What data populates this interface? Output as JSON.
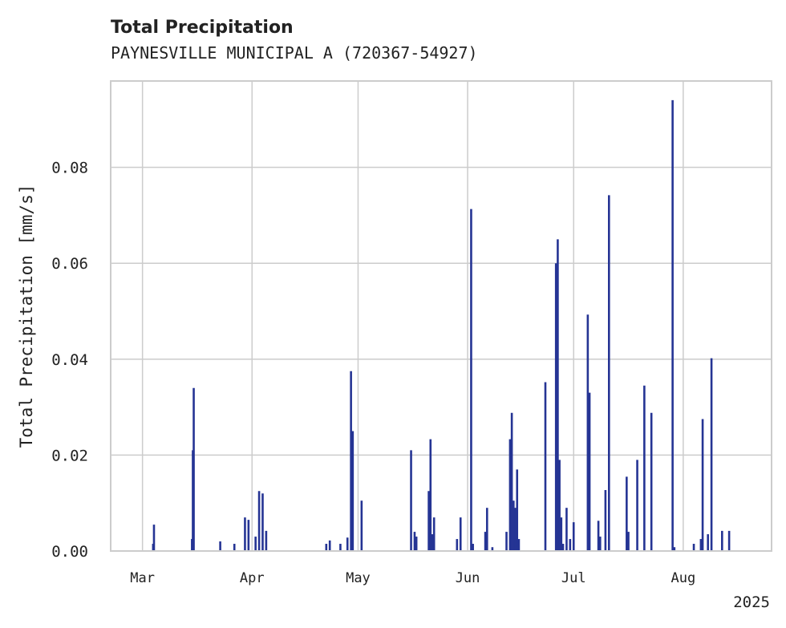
{
  "chart_data": {
    "type": "bar",
    "title": "Total Precipitation",
    "subtitle": "PAYNESVILLE MUNICIPAL A (720367-54927)",
    "ylabel": "Total Precipitation [mm/s]",
    "xlabel": "",
    "year_label": "2025",
    "ylim": [
      0,
      0.098
    ],
    "yticks": [
      "0.00",
      "0.02",
      "0.04",
      "0.06",
      "0.08"
    ],
    "ytick_values": [
      0,
      0.02,
      0.04,
      0.06,
      0.08
    ],
    "xlim": [
      "2025-02-20",
      "2025-08-26"
    ],
    "xticks": [
      {
        "label": "Mar",
        "date": "2025-03-01"
      },
      {
        "label": "Apr",
        "date": "2025-04-01"
      },
      {
        "label": "May",
        "date": "2025-05-01"
      },
      {
        "label": "Jun",
        "date": "2025-06-01"
      },
      {
        "label": "Jul",
        "date": "2025-07-01"
      },
      {
        "label": "Aug",
        "date": "2025-08-01"
      }
    ],
    "grid": true,
    "color": "#253494",
    "points": [
      {
        "x": "2025-03-04",
        "y": 0.0015
      },
      {
        "x": "2025-03-04 06:00",
        "y": 0.0055
      },
      {
        "x": "2025-03-15",
        "y": 0.0025
      },
      {
        "x": "2025-03-15 06:00",
        "y": 0.021
      },
      {
        "x": "2025-03-15 12:00",
        "y": 0.034
      },
      {
        "x": "2025-03-23",
        "y": 0.002
      },
      {
        "x": "2025-03-27",
        "y": 0.0015
      },
      {
        "x": "2025-03-30",
        "y": 0.007
      },
      {
        "x": "2025-03-31",
        "y": 0.0065
      },
      {
        "x": "2025-04-02",
        "y": 0.003
      },
      {
        "x": "2025-04-03",
        "y": 0.0125
      },
      {
        "x": "2025-04-04",
        "y": 0.012
      },
      {
        "x": "2025-04-05",
        "y": 0.0042
      },
      {
        "x": "2025-04-22",
        "y": 0.0015
      },
      {
        "x": "2025-04-23",
        "y": 0.0022
      },
      {
        "x": "2025-04-26",
        "y": 0.0015
      },
      {
        "x": "2025-04-28",
        "y": 0.0028
      },
      {
        "x": "2025-04-29",
        "y": 0.0375
      },
      {
        "x": "2025-04-29 12:00",
        "y": 0.025
      },
      {
        "x": "2025-05-02",
        "y": 0.0105
      },
      {
        "x": "2025-05-16",
        "y": 0.021
      },
      {
        "x": "2025-05-17",
        "y": 0.004
      },
      {
        "x": "2025-05-17 12:00",
        "y": 0.003
      },
      {
        "x": "2025-05-21",
        "y": 0.0125
      },
      {
        "x": "2025-05-21 12:00",
        "y": 0.0233
      },
      {
        "x": "2025-05-22",
        "y": 0.0035
      },
      {
        "x": "2025-05-22 12:00",
        "y": 0.007
      },
      {
        "x": "2025-05-29",
        "y": 0.0025
      },
      {
        "x": "2025-05-30",
        "y": 0.007
      },
      {
        "x": "2025-06-02",
        "y": 0.0713
      },
      {
        "x": "2025-06-02 12:00",
        "y": 0.0015
      },
      {
        "x": "2025-06-06",
        "y": 0.004
      },
      {
        "x": "2025-06-06 12:00",
        "y": 0.009
      },
      {
        "x": "2025-06-08",
        "y": 0.0008
      },
      {
        "x": "2025-06-12",
        "y": 0.004
      },
      {
        "x": "2025-06-13",
        "y": 0.0233
      },
      {
        "x": "2025-06-13 12:00",
        "y": 0.0288
      },
      {
        "x": "2025-06-14",
        "y": 0.0105
      },
      {
        "x": "2025-06-14 12:00",
        "y": 0.009
      },
      {
        "x": "2025-06-15",
        "y": 0.017
      },
      {
        "x": "2025-06-15 12:00",
        "y": 0.0025
      },
      {
        "x": "2025-06-23",
        "y": 0.0352
      },
      {
        "x": "2025-06-26",
        "y": 0.06
      },
      {
        "x": "2025-06-26 12:00",
        "y": 0.065
      },
      {
        "x": "2025-06-27",
        "y": 0.019
      },
      {
        "x": "2025-06-27 12:00",
        "y": 0.007
      },
      {
        "x": "2025-06-28",
        "y": 0.0015
      },
      {
        "x": "2025-06-29",
        "y": 0.009
      },
      {
        "x": "2025-06-30",
        "y": 0.0025
      },
      {
        "x": "2025-07-01",
        "y": 0.006
      },
      {
        "x": "2025-07-05",
        "y": 0.0493
      },
      {
        "x": "2025-07-05 12:00",
        "y": 0.033
      },
      {
        "x": "2025-07-08",
        "y": 0.0063
      },
      {
        "x": "2025-07-08 12:00",
        "y": 0.003
      },
      {
        "x": "2025-07-10",
        "y": 0.0127
      },
      {
        "x": "2025-07-11",
        "y": 0.0742
      },
      {
        "x": "2025-07-16",
        "y": 0.0155
      },
      {
        "x": "2025-07-16 12:00",
        "y": 0.004
      },
      {
        "x": "2025-07-19",
        "y": 0.019
      },
      {
        "x": "2025-07-21",
        "y": 0.0345
      },
      {
        "x": "2025-07-23",
        "y": 0.0288
      },
      {
        "x": "2025-07-29",
        "y": 0.094
      },
      {
        "x": "2025-07-29 12:00",
        "y": 0.0008
      },
      {
        "x": "2025-08-04",
        "y": 0.0015
      },
      {
        "x": "2025-08-06",
        "y": 0.0025
      },
      {
        "x": "2025-08-06 12:00",
        "y": 0.0275
      },
      {
        "x": "2025-08-08",
        "y": 0.0035
      },
      {
        "x": "2025-08-09",
        "y": 0.0402
      },
      {
        "x": "2025-08-12",
        "y": 0.0042
      },
      {
        "x": "2025-08-14",
        "y": 0.0042
      }
    ]
  }
}
